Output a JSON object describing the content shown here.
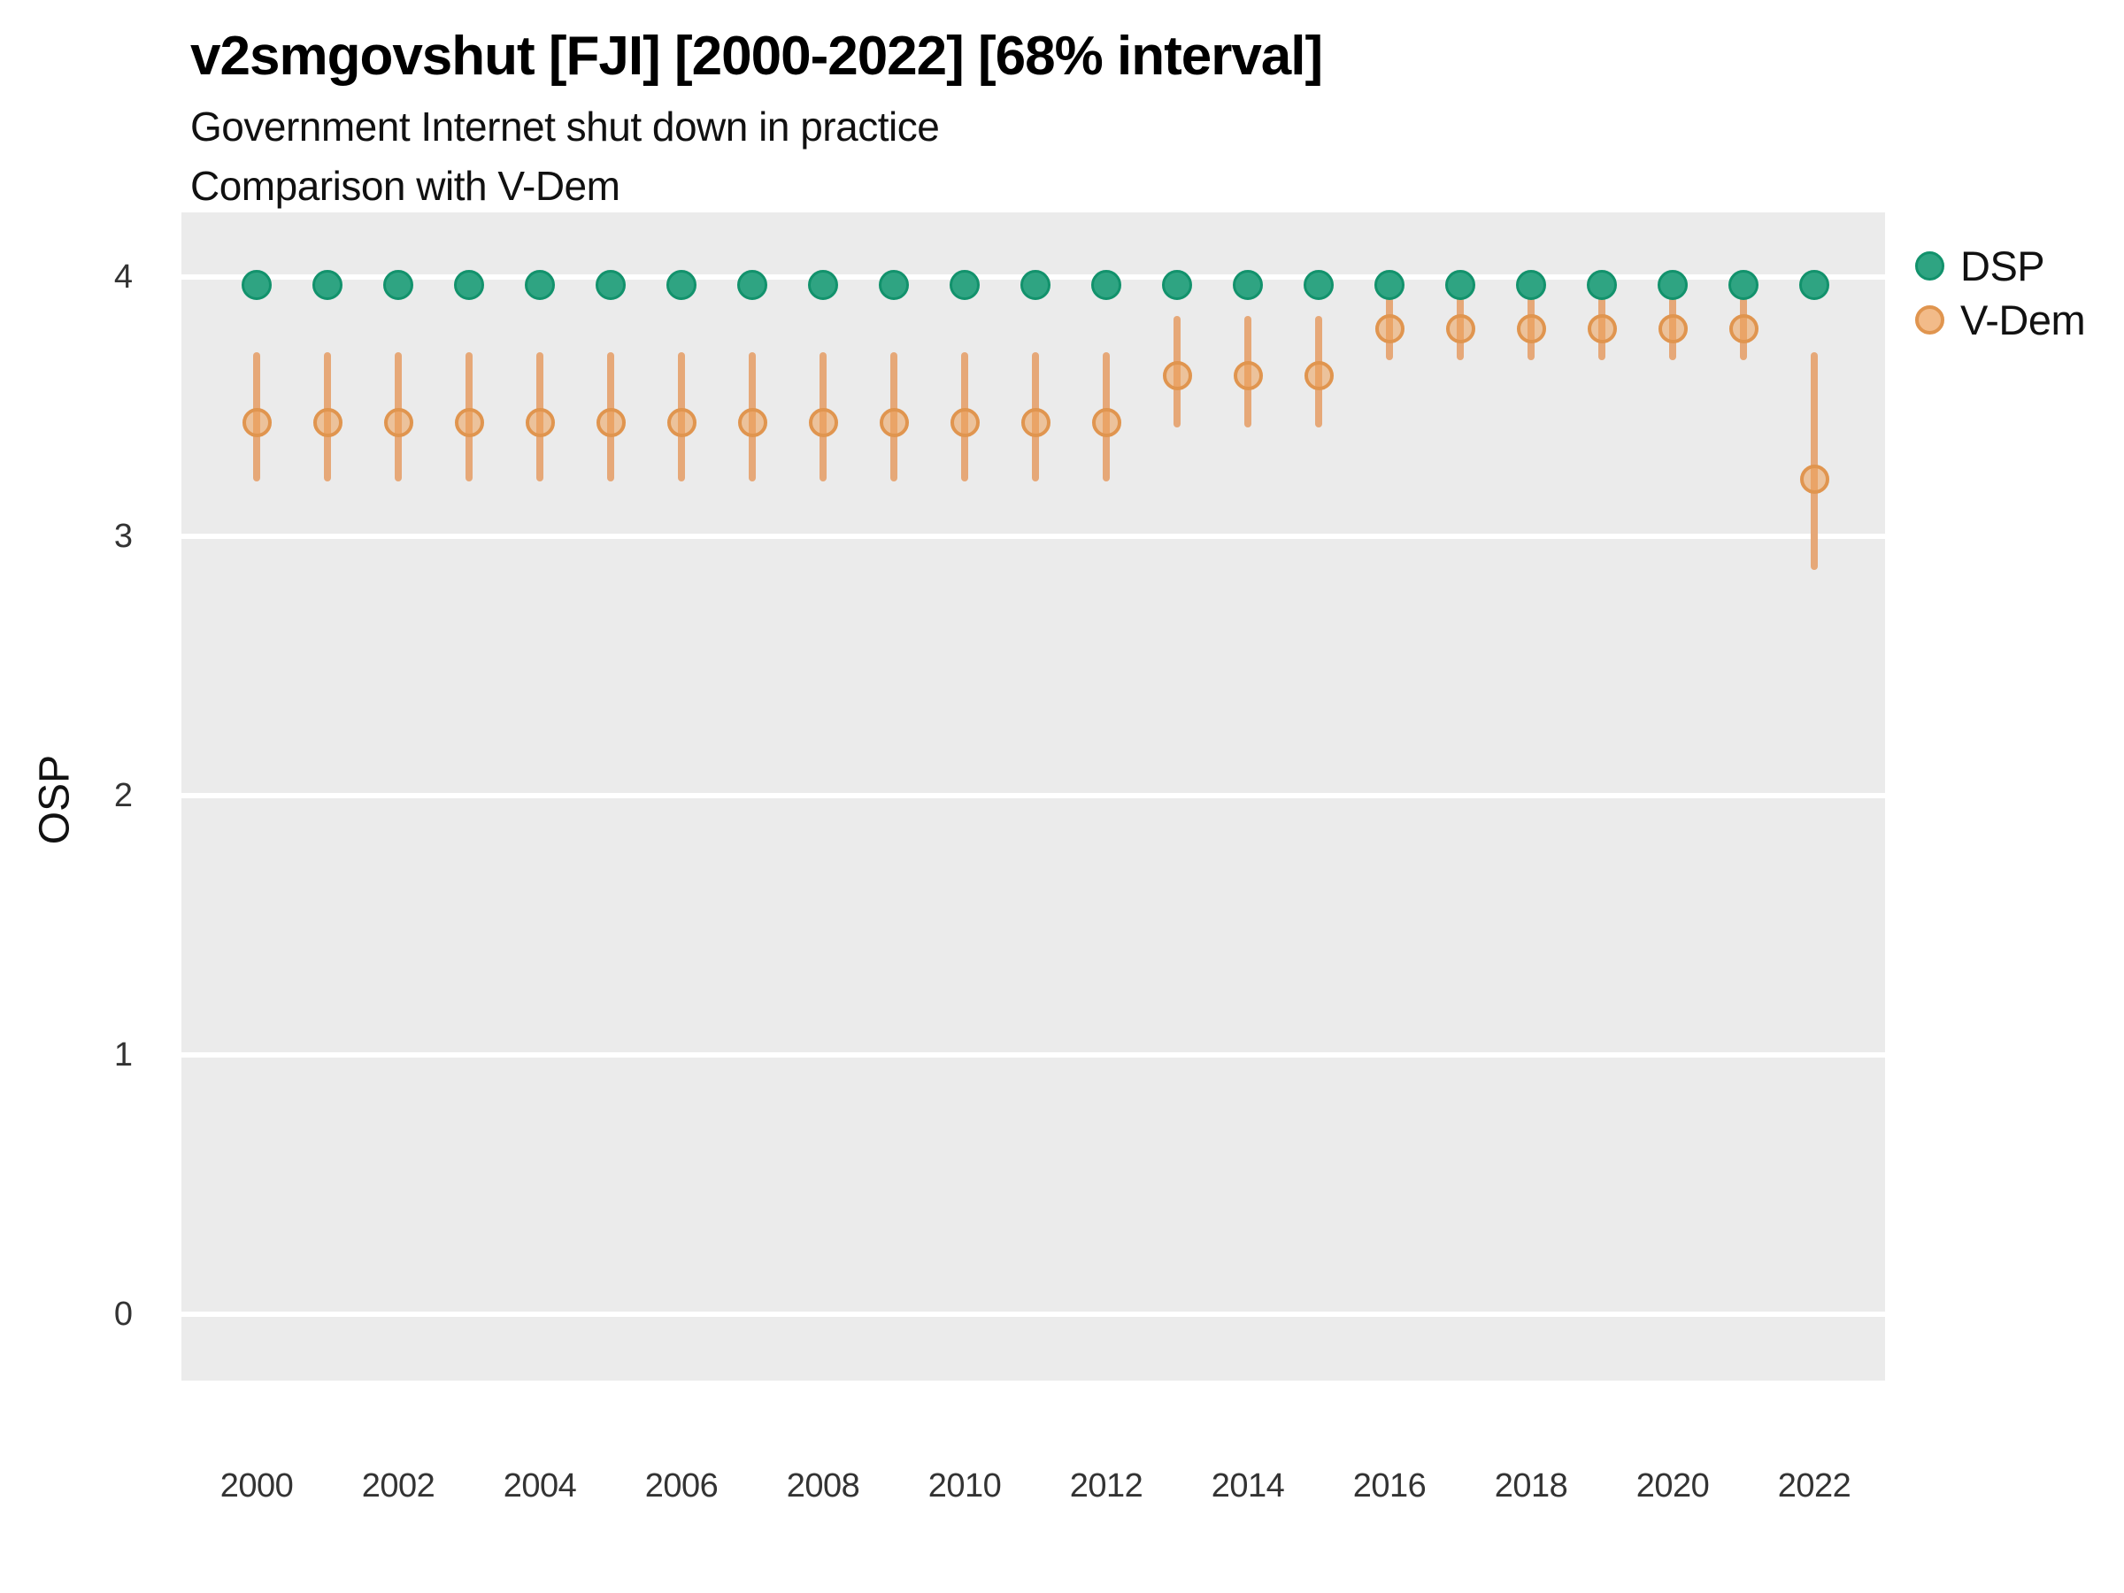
{
  "header": {
    "title": "v2smgovshut [FJI] [2000-2022] [68% interval]",
    "subtitle1": "Government Internet shut down in practice",
    "subtitle2": "Comparison with V-Dem"
  },
  "colors": {
    "panel_background": "#EBEBEB",
    "gridline": "#FFFFFF",
    "dsp_fill": "#2FA482",
    "dsp_stroke": "#12926C",
    "vdem_fill": "rgba(236,160,90,0.55)",
    "vdem_stroke": "#E0954F",
    "vdem_bar": "#E6A878",
    "vdem_legend_fill": "#F2BB89"
  },
  "chart_data": {
    "type": "scatter",
    "title": "v2smgovshut [FJI] [2000-2022] [68% interval]",
    "subtitle": [
      "Government Internet shut down in practice",
      "Comparison with V-Dem"
    ],
    "ylabel": "OSP",
    "xlabel": "",
    "interval": "68%",
    "legend_position": "right-top",
    "grid": "horizontal major gridlines only, white on gray panel",
    "ylim": [
      -0.25,
      4.25
    ],
    "yticks": [
      0,
      1,
      2,
      3,
      4
    ],
    "xticks": [
      2000,
      2002,
      2004,
      2006,
      2008,
      2010,
      2012,
      2014,
      2016,
      2018,
      2020,
      2022
    ],
    "x": [
      2000,
      2001,
      2002,
      2003,
      2004,
      2005,
      2006,
      2007,
      2008,
      2009,
      2010,
      2011,
      2012,
      2013,
      2014,
      2015,
      2016,
      2017,
      2018,
      2019,
      2020,
      2021,
      2022
    ],
    "series": [
      {
        "name": "DSP",
        "values": [
          3.97,
          3.97,
          3.97,
          3.97,
          3.97,
          3.97,
          3.97,
          3.97,
          3.97,
          3.97,
          3.97,
          3.97,
          3.97,
          3.97,
          3.97,
          3.97,
          3.97,
          3.97,
          3.97,
          3.97,
          3.97,
          3.97,
          3.97
        ]
      },
      {
        "name": "V-Dem",
        "values": [
          3.44,
          3.44,
          3.44,
          3.44,
          3.44,
          3.44,
          3.44,
          3.44,
          3.44,
          3.44,
          3.44,
          3.44,
          3.44,
          3.62,
          3.62,
          3.62,
          3.8,
          3.8,
          3.8,
          3.8,
          3.8,
          3.8,
          3.22
        ],
        "lo": [
          3.21,
          3.21,
          3.21,
          3.21,
          3.21,
          3.21,
          3.21,
          3.21,
          3.21,
          3.21,
          3.21,
          3.21,
          3.21,
          3.42,
          3.42,
          3.42,
          3.68,
          3.68,
          3.68,
          3.68,
          3.68,
          3.68,
          2.87
        ],
        "hi": [
          3.71,
          3.71,
          3.71,
          3.71,
          3.71,
          3.71,
          3.71,
          3.71,
          3.71,
          3.71,
          3.71,
          3.71,
          3.71,
          3.85,
          3.85,
          3.85,
          3.92,
          3.92,
          3.92,
          3.92,
          3.92,
          3.92,
          3.71
        ]
      }
    ]
  }
}
